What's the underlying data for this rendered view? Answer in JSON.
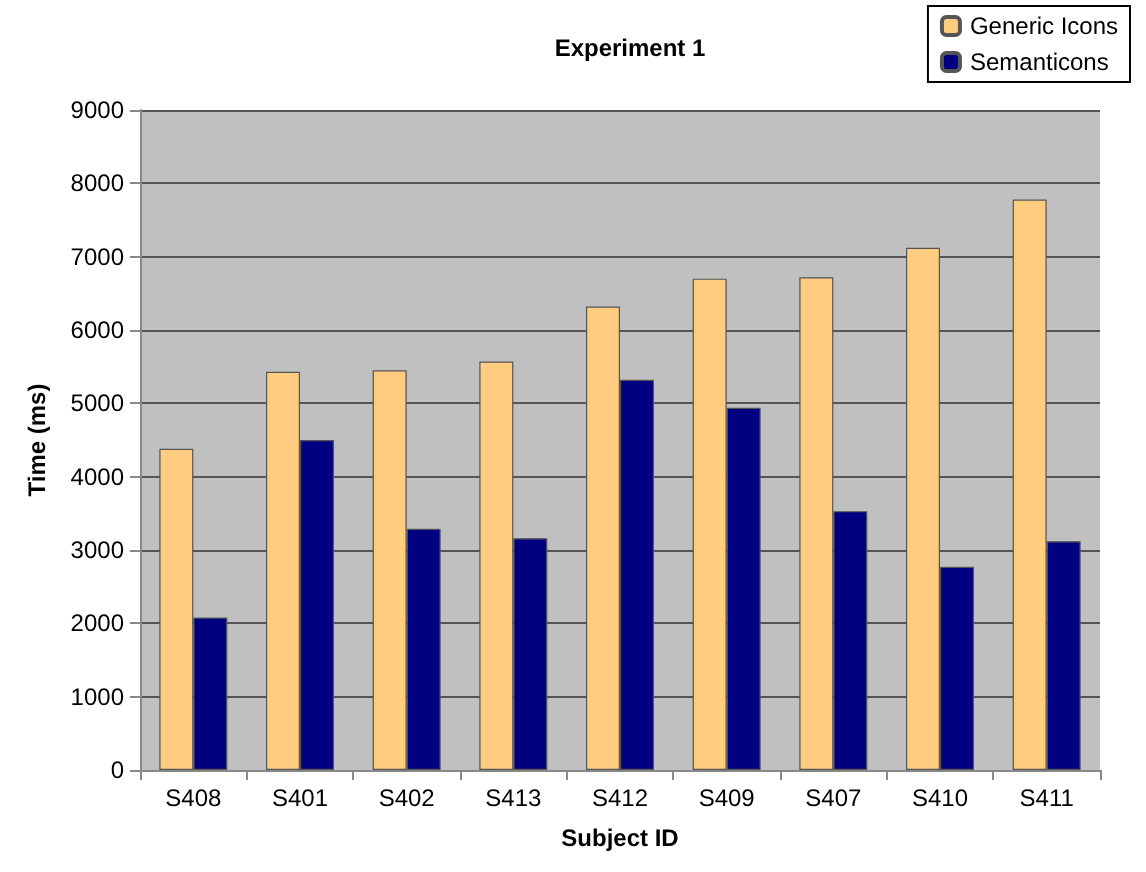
{
  "chart_data": {
    "type": "bar",
    "title": "Experiment 1",
    "xlabel": "Subject ID",
    "ylabel": "Time (ms)",
    "categories": [
      "S408",
      "S401",
      "S402",
      "S413",
      "S412",
      "S409",
      "S407",
      "S410",
      "S411"
    ],
    "series": [
      {
        "name": "Generic Icons",
        "color": "#ffcc80",
        "values": [
          4380,
          5430,
          5450,
          5570,
          6320,
          6700,
          6720,
          7120,
          7780
        ]
      },
      {
        "name": "Semanticons",
        "color": "#000080",
        "values": [
          2080,
          4500,
          3290,
          3160,
          5320,
          4940,
          3530,
          2770,
          3120
        ]
      }
    ],
    "ylim": [
      0,
      9000
    ],
    "yticks": [
      0,
      1000,
      2000,
      3000,
      4000,
      5000,
      6000,
      7000,
      8000,
      9000
    ],
    "grid": "y",
    "legend": "top right"
  }
}
